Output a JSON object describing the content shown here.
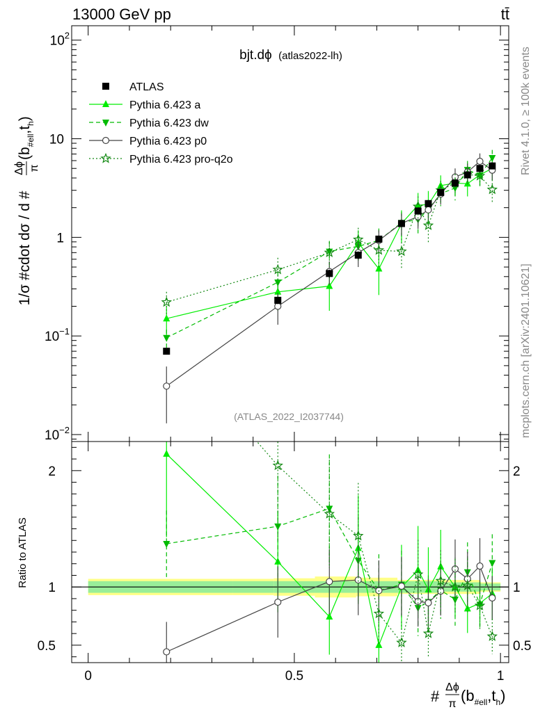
{
  "header": {
    "energy": "13000 GeV pp",
    "process": "tt̄"
  },
  "side_text": {
    "rivet": "Rivet 4.1.0, ≥ 100k events",
    "site": "mcplots.cern.ch [arXiv:2401.10621]"
  },
  "chart_data": {
    "type": "scatter",
    "title": "bjt.dϕ",
    "subtitle": "(atlas2022-lh)",
    "analysis": "(ATLAS_2022_I2037744)",
    "ylabel": "1/σ #cdot dσ / d #Δϕ/π(b_#ell,t_h)",
    "ylabel_parts": {
      "pre": "1/σ #cdot dσ / d #",
      "num": "Δϕ",
      "den": "π",
      "base": "(b",
      "sub1": "#ell",
      "mid": ",t",
      "sub2": "h",
      "close": ")"
    },
    "xlabel_parts": {
      "pre": "#",
      "num": "Δϕ",
      "den": "π",
      "base": "(b",
      "sub1": "#ell",
      "mid": ",t",
      "sub2": "h",
      "close": ")"
    },
    "ratio_ylabel": "Ratio to ATLAS",
    "xlim": [
      -0.04,
      1.02
    ],
    "ylim": [
      0.0085,
      140
    ],
    "ratio_ylim": [
      0.35,
      2.25
    ],
    "yscale": "log",
    "x_ticks": [
      {
        "v": 0,
        "label": "0"
      },
      {
        "v": 0.5,
        "label": "0.5"
      },
      {
        "v": 1,
        "label": "1"
      }
    ],
    "y_ticks": [
      {
        "v": 0.01,
        "base": "10",
        "exp": "−2"
      },
      {
        "v": 0.1,
        "base": "10",
        "exp": "−1"
      },
      {
        "v": 1,
        "base": "1",
        "exp": ""
      },
      {
        "v": 10,
        "base": "10",
        "exp": ""
      },
      {
        "v": 100,
        "base": "10",
        "exp": "2"
      }
    ],
    "ratio_ticks": [
      {
        "v": 0.5,
        "label": "0.5"
      },
      {
        "v": 1,
        "label": "1"
      },
      {
        "v": 2,
        "label": "2"
      }
    ],
    "x": [
      0.19,
      0.46,
      0.585,
      0.655,
      0.705,
      0.76,
      0.8,
      0.825,
      0.855,
      0.89,
      0.92,
      0.95,
      0.98
    ],
    "band_edges": [
      0,
      0.35,
      0.45,
      0.55,
      0.65,
      0.75,
      0.85,
      0.95,
      1.0
    ],
    "band_inner": [
      0.05,
      0.05,
      0.05,
      0.05,
      0.05,
      0.05,
      0.04,
      0.03
    ],
    "band_outer": [
      0.07,
      0.07,
      0.075,
      0.09,
      0.08,
      0.06,
      0.06,
      0.04
    ],
    "series": [
      {
        "name": "ATLAS",
        "style": "data",
        "color": "#000000",
        "marker": "square",
        "dash": "",
        "values": [
          0.07,
          0.23,
          0.43,
          0.66,
          0.96,
          1.38,
          1.85,
          2.2,
          2.85,
          3.55,
          4.3,
          5.0,
          5.3
        ],
        "errors": [
          0.005,
          0.02,
          0.04,
          0.06,
          0.08,
          0.11,
          0.14,
          0.16,
          0.2,
          0.25,
          0.3,
          0.35,
          0.4
        ]
      },
      {
        "name": "Pythia 6.423 a",
        "style": "mc",
        "color": "#00ee00",
        "marker": "triangle-up",
        "dash": "",
        "values": [
          0.15,
          0.28,
          0.32,
          0.88,
          0.48,
          1.38,
          2.12,
          2.15,
          3.35,
          3.55,
          3.5,
          4.3,
          5.0
        ],
        "errors": [
          0.05,
          0.1,
          0.14,
          0.3,
          0.22,
          0.5,
          0.7,
          0.8,
          0.9,
          0.9,
          0.9,
          1.0,
          1.2
        ]
      },
      {
        "name": "Pythia 6.423 dw",
        "style": "mc",
        "color": "#00bb00",
        "marker": "triangle-down",
        "dash": "6,4",
        "values": [
          0.096,
          0.35,
          0.72,
          0.81,
          0.93,
          1.41,
          1.52,
          1.92,
          2.77,
          3.17,
          4.85,
          4.25,
          6.4
        ],
        "errors": [
          0.02,
          0.1,
          0.2,
          0.25,
          0.3,
          0.4,
          0.45,
          0.5,
          0.7,
          0.8,
          1.1,
          1.0,
          1.3
        ]
      },
      {
        "name": "Pythia 6.423 p0",
        "style": "mc",
        "color": "#444444",
        "marker": "circle-open",
        "dash": "",
        "values": [
          0.031,
          0.2,
          0.45,
          0.7,
          0.93,
          1.39,
          1.62,
          1.9,
          2.75,
          4.1,
          4.6,
          5.9,
          4.8
        ],
        "errors": [
          0.018,
          0.07,
          0.12,
          0.2,
          0.25,
          0.35,
          0.4,
          0.45,
          0.6,
          0.9,
          1.0,
          1.2,
          1.0
        ]
      },
      {
        "name": "Pythia 6.423 pro-q2o",
        "style": "mc",
        "color": "#118811",
        "marker": "star-open",
        "dash": "2,3",
        "values": [
          0.22,
          0.47,
          0.7,
          0.95,
          0.74,
          0.72,
          2.05,
          1.32,
          3.0,
          3.55,
          4.35,
          4.2,
          3.05
        ],
        "errors": [
          0.06,
          0.15,
          0.2,
          0.3,
          0.25,
          0.25,
          0.55,
          0.45,
          0.75,
          0.85,
          1.0,
          1.0,
          0.8
        ]
      }
    ]
  }
}
